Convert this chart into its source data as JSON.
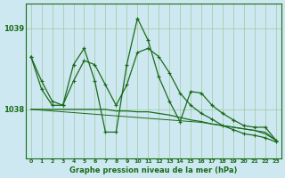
{
  "title": "Graphe pression niveau de la mer (hPa)",
  "background_color": "#cde8f0",
  "plot_bg_color": "#cde8f0",
  "line_color": "#1a6b1a",
  "grid_color": "#a0c8a0",
  "x_labels": [
    "0",
    "1",
    "2",
    "3",
    "4",
    "5",
    "6",
    "7",
    "8",
    "9",
    "10",
    "11",
    "12",
    "13",
    "14",
    "15",
    "16",
    "17",
    "18",
    "19",
    "20",
    "21",
    "22",
    "23"
  ],
  "series_main": [
    1038.65,
    1038.25,
    1038.05,
    1038.05,
    1038.55,
    1038.75,
    1038.35,
    1037.72,
    1037.72,
    1038.55,
    1039.12,
    1038.85,
    1038.4,
    1038.1,
    1037.85,
    1038.22,
    1038.2,
    1038.05,
    1037.95,
    1037.87,
    1037.8,
    1037.78,
    1037.78,
    1037.62
  ],
  "series_smooth1": [
    1038.65,
    1038.35,
    1038.1,
    1038.05,
    1038.35,
    1038.6,
    1038.55,
    1038.3,
    1038.05,
    1038.3,
    1038.7,
    1038.75,
    1038.65,
    1038.45,
    1038.2,
    1038.05,
    1037.95,
    1037.88,
    1037.8,
    1037.75,
    1037.7,
    1037.68,
    1037.65,
    1037.6
  ],
  "series_smooth2": [
    1038.0,
    1038.0,
    1038.0,
    1038.0,
    1038.0,
    1038.0,
    1038.0,
    1038.0,
    1037.98,
    1037.98,
    1037.97,
    1037.97,
    1037.95,
    1037.93,
    1037.9,
    1037.87,
    1037.85,
    1037.82,
    1037.8,
    1037.78,
    1037.76,
    1037.74,
    1037.7,
    1037.62
  ],
  "series_trend": [
    1038.0,
    1037.99,
    1037.98,
    1037.97,
    1037.96,
    1037.95,
    1037.94,
    1037.93,
    1037.92,
    1037.91,
    1037.9,
    1037.89,
    1037.88,
    1037.87,
    1037.86,
    1037.85,
    1037.84,
    1037.82,
    1037.8,
    1037.78,
    1037.76,
    1037.74,
    1037.72,
    1037.62
  ],
  "ylim_min": 1037.4,
  "ylim_max": 1039.3,
  "yticks": [
    1038.0,
    1039.0
  ],
  "ytick_labels": [
    "1038",
    "1039"
  ]
}
